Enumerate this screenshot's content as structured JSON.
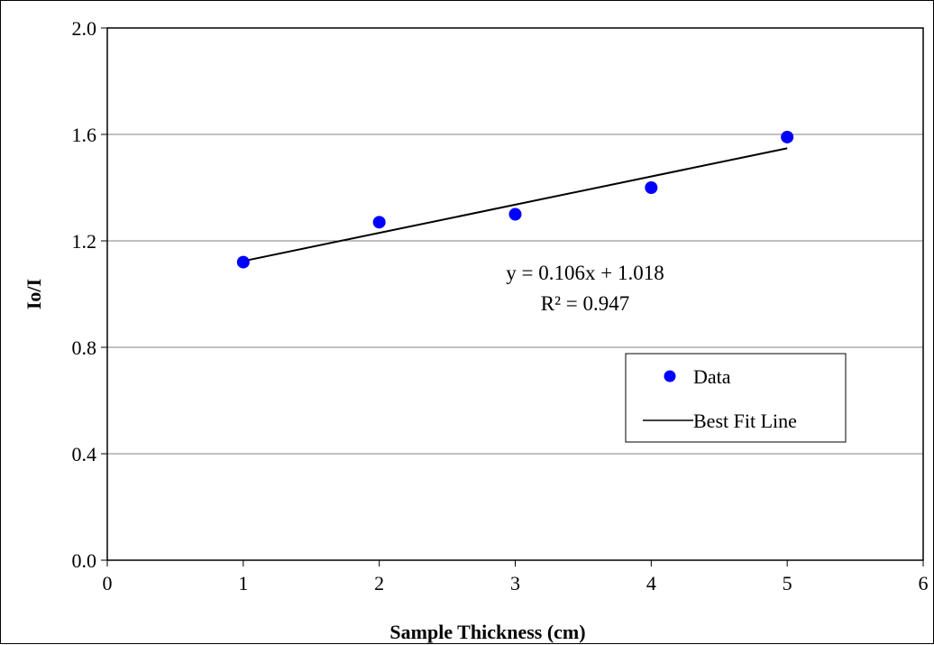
{
  "chart_data": {
    "type": "scatter",
    "xlabel": "Sample Thickness (cm)",
    "ylabel": "Io/I",
    "xlim": [
      0,
      6
    ],
    "ylim": [
      0.0,
      2.0
    ],
    "x_ticks": [
      0,
      1,
      2,
      3,
      4,
      5,
      6
    ],
    "x_tick_labels": [
      "0",
      "1",
      "2",
      "3",
      "4",
      "5",
      "6"
    ],
    "y_ticks": [
      0.0,
      0.4,
      0.8,
      1.2,
      1.6,
      2.0
    ],
    "y_tick_labels": [
      "0.0",
      "0.4",
      "0.8",
      "1.2",
      "1.6",
      "2.0"
    ],
    "grid": "horizontal",
    "legend_position": "lower-right",
    "series": [
      {
        "name": "Data",
        "kind": "scatter",
        "color": "#0000ff",
        "x": [
          1,
          2,
          3,
          4,
          5
        ],
        "y": [
          1.12,
          1.27,
          1.3,
          1.4,
          1.59
        ]
      },
      {
        "name": "Best Fit Line",
        "kind": "line",
        "color": "#000000",
        "slope": 0.106,
        "intercept": 1.018,
        "x": [
          1,
          5
        ]
      }
    ],
    "annotations": {
      "equation": "y = 0.106x + 1.018",
      "r_squared": "R² = 0.947"
    }
  }
}
